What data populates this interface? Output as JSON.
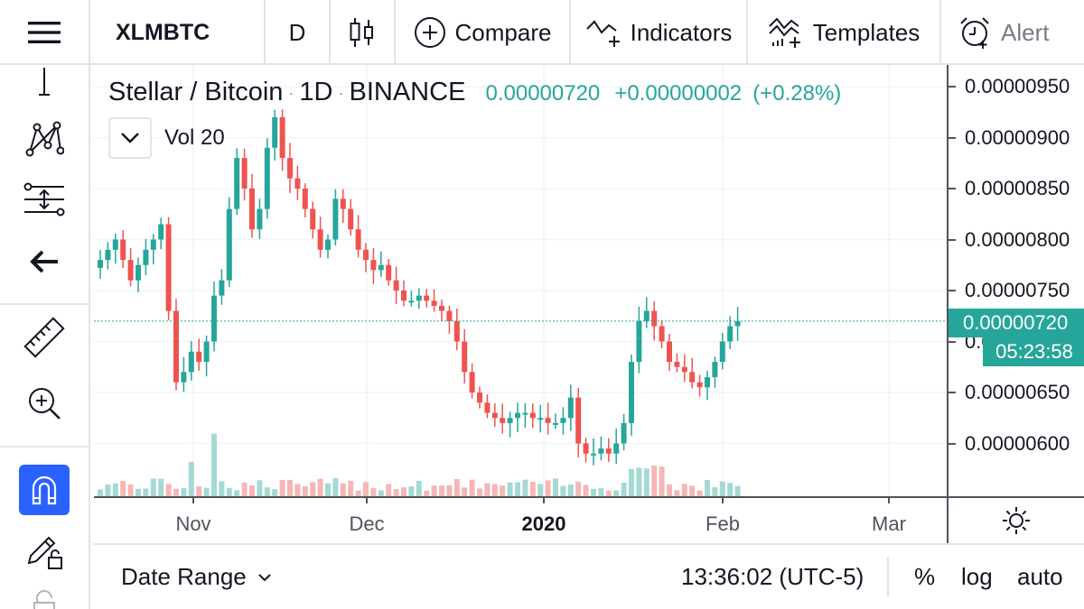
{
  "toolbar": {
    "menu_icon": "hamburger-menu-icon",
    "symbol": "XLMBTC",
    "interval": "D",
    "chart_type_icon": "candlestick-icon",
    "compare_label": "Compare",
    "indicators_label": "Indicators",
    "templates_label": "Templates",
    "alert_label": "Alert"
  },
  "sidebar": {
    "tools": [
      {
        "name": "line-tool-icon"
      },
      {
        "name": "pattern-tool-icon"
      },
      {
        "name": "fib-tool-icon"
      },
      {
        "name": "back-arrow-icon"
      },
      {
        "name": "ruler-icon"
      },
      {
        "name": "zoom-in-icon"
      },
      {
        "name": "magnet-icon",
        "active": true
      },
      {
        "name": "pencil-lock-icon"
      },
      {
        "name": "lock-icon"
      }
    ],
    "accent_color": "#2962ff"
  },
  "legend": {
    "title": "Stellar / Bitcoin",
    "interval": "1D",
    "exchange": "BINANCE",
    "last_price": "0.00000720",
    "change": "+0.00000002",
    "change_pct": "(+0.28%)",
    "volume_label": "Vol 20"
  },
  "price_axis": {
    "labels": [
      "0.00000950",
      "0.00000900",
      "0.00000850",
      "0.00000800",
      "0.00000750",
      "0.0000070",
      "0.00000650",
      "0.00000600"
    ],
    "last_price": "0.00000720",
    "countdown": "05:23:58"
  },
  "time_axis": {
    "labels": [
      {
        "text": "Nov",
        "bold": false
      },
      {
        "text": "Dec",
        "bold": false
      },
      {
        "text": "2020",
        "bold": true
      },
      {
        "text": "Feb",
        "bold": false
      },
      {
        "text": "Mar",
        "bold": false
      }
    ]
  },
  "bottom_bar": {
    "date_range_label": "Date Range",
    "clock": "13:36:02 (UTC-5)",
    "percent_label": "%",
    "log_label": "log",
    "auto_label": "auto"
  },
  "colors": {
    "up": "#26a69a",
    "down": "#ef5350",
    "up_volume": "#a4d9d4",
    "down_volume": "#f5b7b6",
    "grid": "#f0f3fa",
    "axis": "#50535e"
  },
  "chart_data": {
    "type": "candlestick",
    "symbol": "XLMBTC",
    "x": [
      "Nov",
      "Dec",
      "2020",
      "Feb",
      "Mar"
    ],
    "ylim": [
      5.5e-06,
      9.8e-06
    ],
    "close_path": [
      7.8e-06,
      7.9e-06,
      8e-06,
      7.8e-06,
      7.6e-06,
      7.75e-06,
      7.9e-06,
      8e-06,
      8.15e-06,
      7.3e-06,
      6.6e-06,
      6.7e-06,
      6.9e-06,
      6.8e-06,
      7e-06,
      7.45e-06,
      7.6e-06,
      8.3e-06,
      8.8e-06,
      8.5e-06,
      8.1e-06,
      8.3e-06,
      8.9e-06,
      9.2e-06,
      8.8e-06,
      8.6e-06,
      8.5e-06,
      8.3e-06,
      8.1e-06,
      7.9e-06,
      8e-06,
      8.4e-06,
      8.3e-06,
      8.1e-06,
      7.9e-06,
      7.8e-06,
      7.7e-06,
      7.75e-06,
      7.6e-06,
      7.5e-06,
      7.4e-06,
      7.4e-06,
      7.45e-06,
      7.4e-06,
      7.35e-06,
      7.3e-06,
      7.2e-06,
      7e-06,
      6.7e-06,
      6.5e-06,
      6.4e-06,
      6.3e-06,
      6.25e-06,
      6.2e-06,
      6.25e-06,
      6.3e-06,
      6.3e-06,
      6.25e-06,
      6.25e-06,
      6.2e-06,
      6.2e-06,
      6.25e-06,
      6.45e-06,
      6e-06,
      5.9e-06,
      5.9e-06,
      5.95e-06,
      5.9e-06,
      6e-06,
      6.2e-06,
      6.8e-06,
      7.2e-06,
      7.3e-06,
      7.15e-06,
      7e-06,
      6.8e-06,
      6.75e-06,
      6.7e-06,
      6.6e-06,
      6.55e-06,
      6.65e-06,
      6.8e-06,
      7e-06,
      7.15e-06,
      7.2e-06
    ],
    "last": 7.2e-06
  }
}
